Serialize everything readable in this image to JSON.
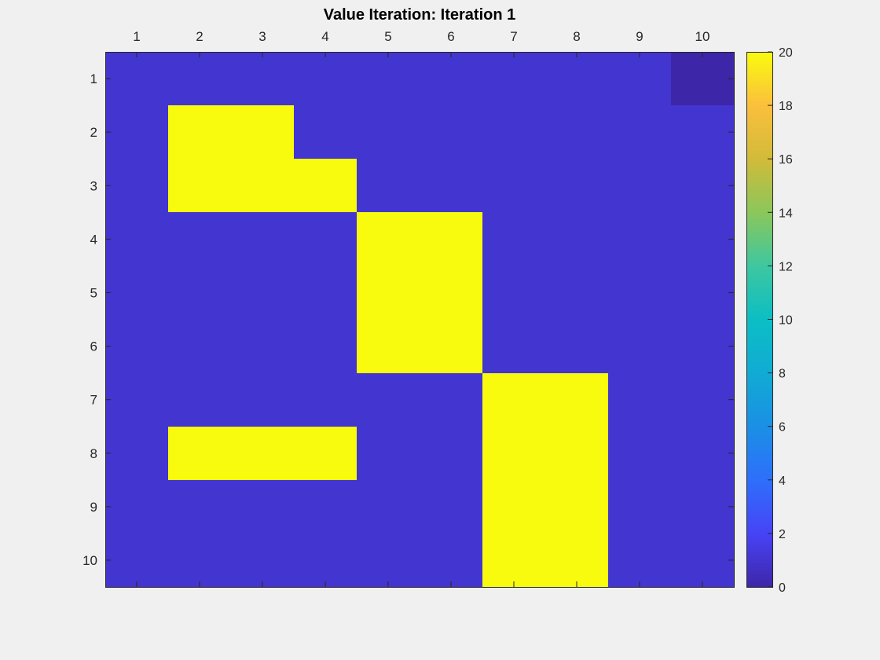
{
  "chart_data": {
    "type": "heatmap",
    "title": "Value Iteration: Iteration 1",
    "x_ticks": [
      "1",
      "2",
      "3",
      "4",
      "5",
      "6",
      "7",
      "8",
      "9",
      "10"
    ],
    "y_ticks": [
      "1",
      "2",
      "3",
      "4",
      "5",
      "6",
      "7",
      "8",
      "9",
      "10"
    ],
    "xlabel": "",
    "ylabel": "",
    "x_axis_location": "top",
    "y_direction": "reverse",
    "grid": false,
    "clim": [
      0,
      20
    ],
    "colormap": "parula",
    "colorbar": {
      "location": "right",
      "ticks": [
        "0",
        "2",
        "4",
        "6",
        "8",
        "10",
        "12",
        "14",
        "16",
        "18",
        "20"
      ]
    },
    "matrix": [
      [
        1,
        1,
        1,
        1,
        1,
        1,
        1,
        1,
        1,
        0
      ],
      [
        1,
        20,
        20,
        1,
        1,
        1,
        1,
        1,
        1,
        1
      ],
      [
        1,
        20,
        20,
        20,
        1,
        1,
        1,
        1,
        1,
        1
      ],
      [
        1,
        1,
        1,
        1,
        20,
        20,
        1,
        1,
        1,
        1
      ],
      [
        1,
        1,
        1,
        1,
        20,
        20,
        1,
        1,
        1,
        1
      ],
      [
        1,
        1,
        1,
        1,
        20,
        20,
        1,
        1,
        1,
        1
      ],
      [
        1,
        1,
        1,
        1,
        1,
        1,
        20,
        20,
        1,
        1
      ],
      [
        1,
        20,
        20,
        20,
        1,
        1,
        20,
        20,
        1,
        1
      ],
      [
        1,
        1,
        1,
        1,
        1,
        1,
        20,
        20,
        1,
        1
      ],
      [
        1,
        1,
        1,
        1,
        1,
        1,
        20,
        20,
        1,
        1
      ]
    ]
  }
}
